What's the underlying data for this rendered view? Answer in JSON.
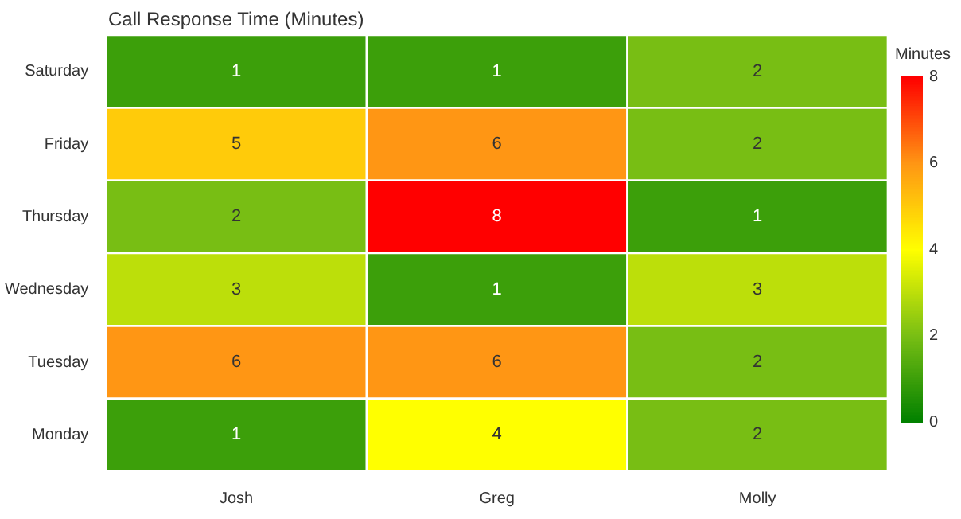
{
  "chart_data": {
    "type": "heatmap",
    "title": "Call Response Time (Minutes)",
    "clabel": "Minutes",
    "categories": [
      "Josh",
      "Greg",
      "Molly"
    ],
    "y_categories": [
      "Saturday",
      "Friday",
      "Thursday",
      "Wednesday",
      "Tuesday",
      "Monday"
    ],
    "cells": [
      [
        1,
        1,
        2
      ],
      [
        5,
        6,
        2
      ],
      [
        2,
        8,
        1
      ],
      [
        3,
        1,
        3
      ],
      [
        6,
        6,
        2
      ],
      [
        1,
        4,
        2
      ]
    ],
    "clim": [
      0,
      8
    ],
    "cticks": [
      0,
      2,
      4,
      6,
      8
    ],
    "data_labels": true
  }
}
